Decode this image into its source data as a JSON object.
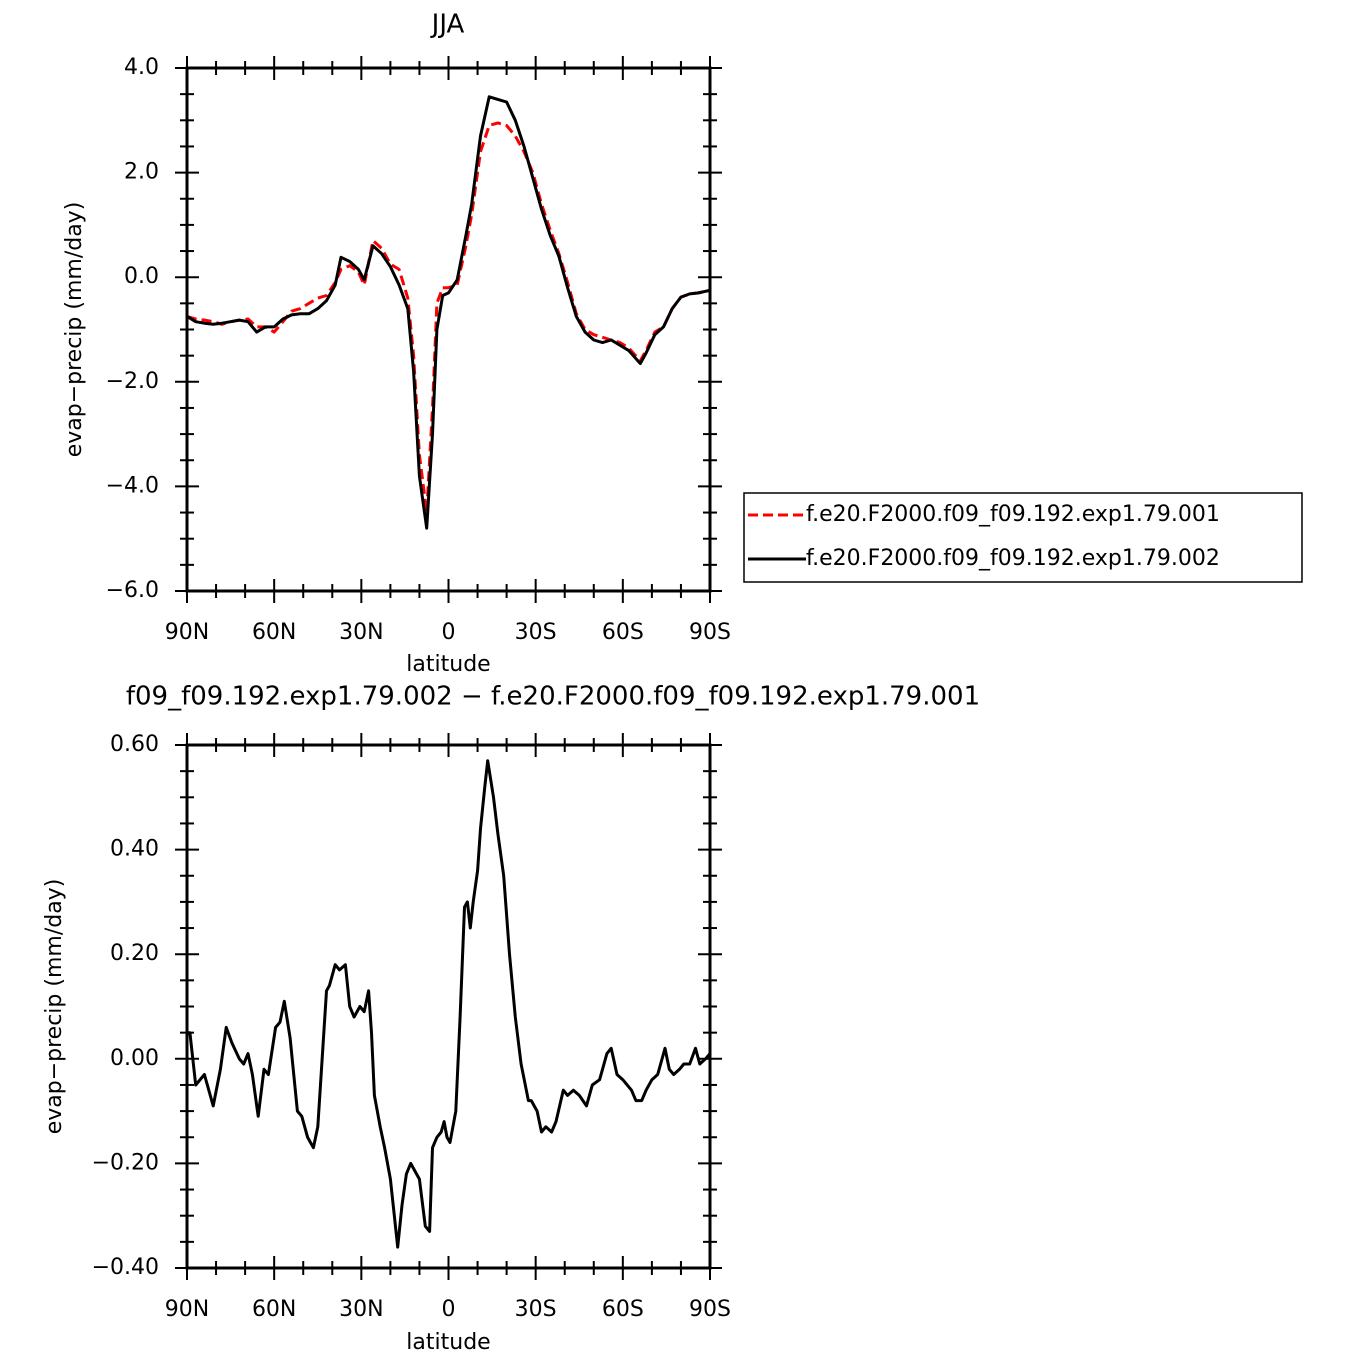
{
  "chart_data": [
    {
      "type": "line",
      "title": "JJA",
      "xlabel": "latitude",
      "ylabel": "evap−precip (mm/day)",
      "x": [
        90,
        87,
        84,
        81,
        78,
        75,
        72,
        69,
        66,
        63,
        60,
        57,
        54,
        51,
        48,
        45,
        42,
        39,
        37,
        34,
        31,
        29,
        26,
        23,
        20,
        17,
        14,
        12,
        10,
        7.5,
        5.5,
        4,
        2,
        0,
        -3,
        -6,
        -8,
        -11,
        -14,
        -17,
        -20,
        -23,
        -26,
        -29,
        -32,
        -35,
        -38,
        -41,
        -44,
        -47,
        -50,
        -53,
        -56,
        -59,
        -62,
        -66,
        -68,
        -71,
        -74,
        -77,
        -80,
        -83,
        -86,
        -90
      ],
      "series": [
        {
          "name": "f.e20.F2000.f09_f09.192.exp1.79.001",
          "color": "#ff0000",
          "dashed": true,
          "values": [
            -0.75,
            -0.8,
            -0.82,
            -0.85,
            -0.9,
            -0.85,
            -0.82,
            -0.8,
            -0.95,
            -0.95,
            -1.05,
            -0.85,
            -0.65,
            -0.6,
            -0.5,
            -0.4,
            -0.35,
            -0.1,
            0.15,
            0.22,
            0.1,
            -0.15,
            0.7,
            0.55,
            0.25,
            0.15,
            -0.4,
            -1.5,
            -3.4,
            -4.5,
            -2.5,
            -0.5,
            -0.2,
            -0.2,
            -0.15,
            0.6,
            1.2,
            2.4,
            2.9,
            2.95,
            2.9,
            2.7,
            2.4,
            2.0,
            1.4,
            0.9,
            0.45,
            -0.1,
            -0.7,
            -1.0,
            -1.1,
            -1.15,
            -1.2,
            -1.25,
            -1.35,
            -1.6,
            -1.4,
            -1.05,
            -0.95,
            -0.6,
            -0.38,
            -0.32,
            -0.3,
            -0.25
          ]
        },
        {
          "name": "f.e20.F2000.f09_f09.192.exp1.79.002",
          "color": "#000000",
          "dashed": false,
          "values": [
            -0.75,
            -0.85,
            -0.88,
            -0.9,
            -0.88,
            -0.85,
            -0.82,
            -0.85,
            -1.05,
            -0.95,
            -0.95,
            -0.8,
            -0.72,
            -0.7,
            -0.7,
            -0.6,
            -0.45,
            -0.15,
            0.38,
            0.3,
            0.15,
            -0.05,
            0.6,
            0.45,
            0.2,
            -0.15,
            -0.6,
            -1.8,
            -3.8,
            -4.8,
            -3.0,
            -1.0,
            -0.35,
            -0.3,
            -0.05,
            0.8,
            1.4,
            2.7,
            3.45,
            3.4,
            3.35,
            3.0,
            2.5,
            1.9,
            1.3,
            0.8,
            0.4,
            -0.2,
            -0.75,
            -1.05,
            -1.2,
            -1.25,
            -1.2,
            -1.3,
            -1.4,
            -1.65,
            -1.45,
            -1.1,
            -0.95,
            -0.6,
            -0.38,
            -0.32,
            -0.3,
            -0.25
          ]
        }
      ],
      "xlim": [
        90,
        -90
      ],
      "xticks": [
        {
          "value": 90,
          "label": "90N"
        },
        {
          "value": 60,
          "label": "60N"
        },
        {
          "value": 30,
          "label": "30N"
        },
        0,
        {
          "value": -30,
          "label": "30S"
        },
        {
          "value": -60,
          "label": "60S"
        },
        {
          "value": -90,
          "label": "90S"
        }
      ],
      "ylim": [
        -6,
        4
      ],
      "yticks": [
        {
          "value": -6,
          "label": "−6.0"
        },
        {
          "value": -4,
          "label": "−4.0"
        },
        {
          "value": -2,
          "label": "−2.0"
        },
        {
          "value": 0,
          "label": "0.0"
        },
        {
          "value": 2,
          "label": "2.0"
        },
        {
          "value": 4,
          "label": "4.0"
        }
      ],
      "legend": "right"
    },
    {
      "type": "line",
      "title": "f09_f09.192.exp1.79.002 − f.e20.F2000.f09_f09.192.exp1.79.001",
      "xlabel": "latitude",
      "ylabel": "evap−precip (mm/day)",
      "x": [
        90,
        89,
        87,
        84,
        81,
        78.5,
        76.5,
        74.5,
        72,
        70.5,
        69,
        67.5,
        65.5,
        63.5,
        62,
        59.5,
        58,
        56.5,
        54.5,
        52,
        50.5,
        48.5,
        46.5,
        45,
        42,
        41,
        39,
        37.5,
        35.5,
        34,
        32.5,
        30.5,
        29,
        27.5,
        26.5,
        25.5,
        23.5,
        22,
        20,
        17.5,
        16,
        14.5,
        13,
        11,
        10,
        8,
        6.5,
        5.5,
        4,
        2.5,
        1.5,
        0.5,
        -0.5,
        -2.5,
        -4,
        -5.5,
        -6.5,
        -7.5,
        -8.5,
        -10,
        -11,
        -12.5,
        -13.5,
        -15.5,
        -17,
        -19,
        -21,
        -23,
        -25,
        -27.5,
        -28.5,
        -30.5,
        -32,
        -33.5,
        -35.5,
        -37,
        -39.5,
        -41,
        -43,
        -45,
        -47.5,
        -49.5,
        -52,
        -54.5,
        -56,
        -58,
        -60,
        -63,
        -64.5,
        -66.5,
        -68,
        -70,
        -72,
        -74.5,
        -76,
        -77.5,
        -79.5,
        -81,
        -83,
        -85,
        -86.5,
        -88.5,
        -90
      ],
      "series": [
        {
          "color": "#000000",
          "dashed": false,
          "values": [
            0.05,
            0.05,
            -0.05,
            -0.03,
            -0.09,
            -0.02,
            0.06,
            0.03,
            0.0,
            -0.01,
            0.01,
            -0.03,
            -0.11,
            -0.02,
            -0.03,
            0.06,
            0.07,
            0.11,
            0.04,
            -0.1,
            -0.11,
            -0.15,
            -0.17,
            -0.13,
            0.13,
            0.14,
            0.18,
            0.17,
            0.18,
            0.1,
            0.08,
            0.1,
            0.09,
            0.13,
            0.05,
            -0.07,
            -0.13,
            -0.17,
            -0.23,
            -0.36,
            -0.28,
            -0.22,
            -0.2,
            -0.22,
            -0.23,
            -0.32,
            -0.33,
            -0.17,
            -0.15,
            -0.14,
            -0.12,
            -0.15,
            -0.16,
            -0.1,
            0.08,
            0.29,
            0.3,
            0.25,
            0.3,
            0.36,
            0.44,
            0.52,
            0.57,
            0.5,
            0.43,
            0.35,
            0.2,
            0.08,
            -0.01,
            -0.08,
            -0.08,
            -0.1,
            -0.14,
            -0.13,
            -0.14,
            -0.12,
            -0.06,
            -0.07,
            -0.06,
            -0.07,
            -0.09,
            -0.05,
            -0.04,
            0.01,
            0.02,
            -0.03,
            -0.04,
            -0.06,
            -0.08,
            -0.08,
            -0.06,
            -0.04,
            -0.03,
            0.02,
            -0.02,
            -0.03,
            -0.02,
            -0.01,
            -0.01,
            0.02,
            -0.01,
            0.0,
            0.01
          ]
        }
      ],
      "xlim": [
        90,
        -90
      ],
      "xticks": [
        {
          "value": 90,
          "label": "90N"
        },
        {
          "value": 60,
          "label": "60N"
        },
        {
          "value": 30,
          "label": "30N"
        },
        0,
        {
          "value": -30,
          "label": "30S"
        },
        {
          "value": -60,
          "label": "60S"
        },
        {
          "value": -90,
          "label": "90S"
        }
      ],
      "ylim": [
        -0.4,
        0.6
      ],
      "yticks": [
        {
          "value": -0.4,
          "label": "−0.40"
        },
        {
          "value": -0.2,
          "label": "−0.20"
        },
        {
          "value": 0,
          "label": "0.00"
        },
        {
          "value": 0.2,
          "label": "0.20"
        },
        {
          "value": 0.4,
          "label": "0.40"
        },
        {
          "value": 0.6,
          "label": "0.60"
        }
      ]
    }
  ]
}
